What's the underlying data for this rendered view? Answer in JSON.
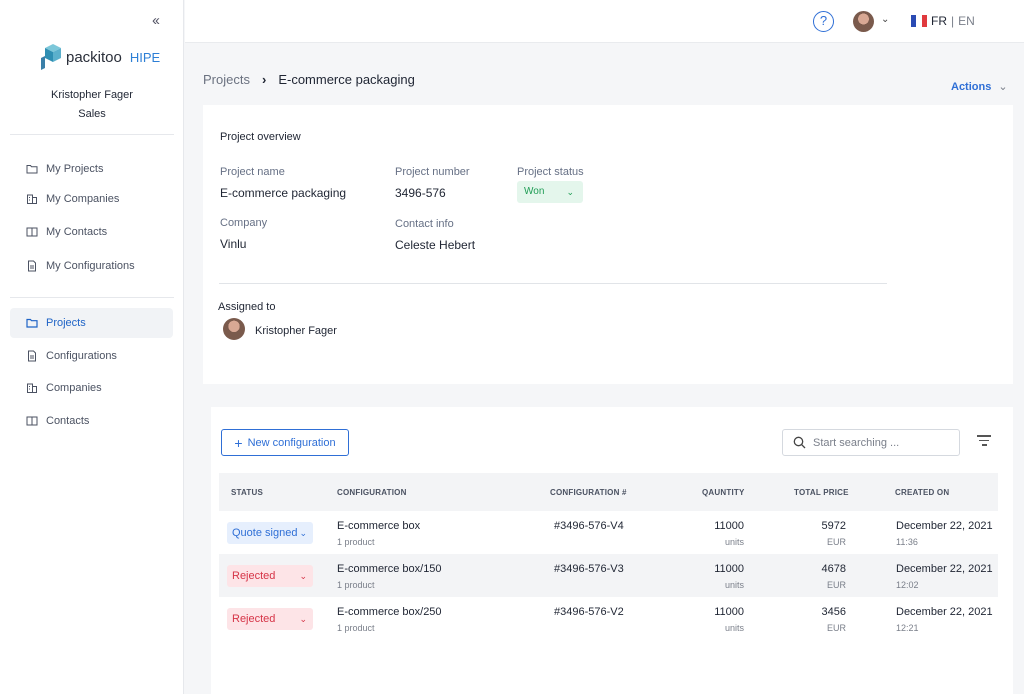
{
  "sidebar": {
    "collapse_icon": "‹‹",
    "logo_name": "packitoo",
    "logo_sub": "HIPE",
    "user_name": "Kristopher Fager",
    "user_role": "Sales",
    "top_items": [
      {
        "label": "My Projects",
        "icon": "folder-icon"
      },
      {
        "label": "My Companies",
        "icon": "building-icon"
      },
      {
        "label": "My Contacts",
        "icon": "book-icon"
      },
      {
        "label": "My Configurations",
        "icon": "document-icon"
      }
    ],
    "bottom_items": [
      {
        "label": "Projects",
        "icon": "folder-icon",
        "active": true
      },
      {
        "label": "Configurations",
        "icon": "document-icon"
      },
      {
        "label": "Companies",
        "icon": "building-icon"
      },
      {
        "label": "Contacts",
        "icon": "book-icon"
      }
    ]
  },
  "topbar": {
    "help_label": "?",
    "lang_fr": "FR",
    "lang_sep": "|",
    "lang_en": "EN"
  },
  "breadcrumb": {
    "parent": "Projects",
    "separator": "›",
    "current": "E-commerce packaging"
  },
  "actions_label": "Actions",
  "overview": {
    "title": "Project overview",
    "project_name_label": "Project name",
    "project_name": "E-commerce packaging",
    "project_number_label": "Project number",
    "project_number": "3496-576",
    "project_status_label": "Project status",
    "project_status": "Won",
    "company_label": "Company",
    "company": "Vinlu",
    "contact_label": "Contact info",
    "contact": "Celeste Hebert",
    "assigned_label": "Assigned to",
    "assigned_name": "Kristopher Fager"
  },
  "configs": {
    "new_button": "New configuration",
    "search_placeholder": "Start searching ...",
    "columns": {
      "status": "STATUS",
      "configuration": "CONFIGURATION",
      "number": "CONFIGURATION #",
      "quantity": "QAUNTITY",
      "price": "TOTAL PRICE",
      "created": "CREATED ON"
    },
    "rows": [
      {
        "status": "Quote signed",
        "status_type": "signed",
        "name": "E-commerce box",
        "products": "1 product",
        "number": "#3496-576-V4",
        "quantity": "11000",
        "qty_unit": "units",
        "price": "5972",
        "currency": "EUR",
        "date": "December 22, 2021",
        "time": "11:36"
      },
      {
        "status": "Rejected",
        "status_type": "rejected",
        "name": "E-commerce box/150",
        "products": "1 product",
        "number": "#3496-576-V3",
        "quantity": "11000",
        "qty_unit": "units",
        "price": "4678",
        "currency": "EUR",
        "date": "December 22, 2021",
        "time": "12:02"
      },
      {
        "status": "Rejected",
        "status_type": "rejected",
        "name": "E-commerce box/250",
        "products": "1 product",
        "number": "#3496-576-V2",
        "quantity": "11000",
        "qty_unit": "units",
        "price": "3456",
        "currency": "EUR",
        "date": "December 22, 2021",
        "time": "12:21"
      }
    ]
  },
  "colors": {
    "accent": "#2f6fd6",
    "won": "#1f9d55",
    "rejected": "#d63447"
  }
}
